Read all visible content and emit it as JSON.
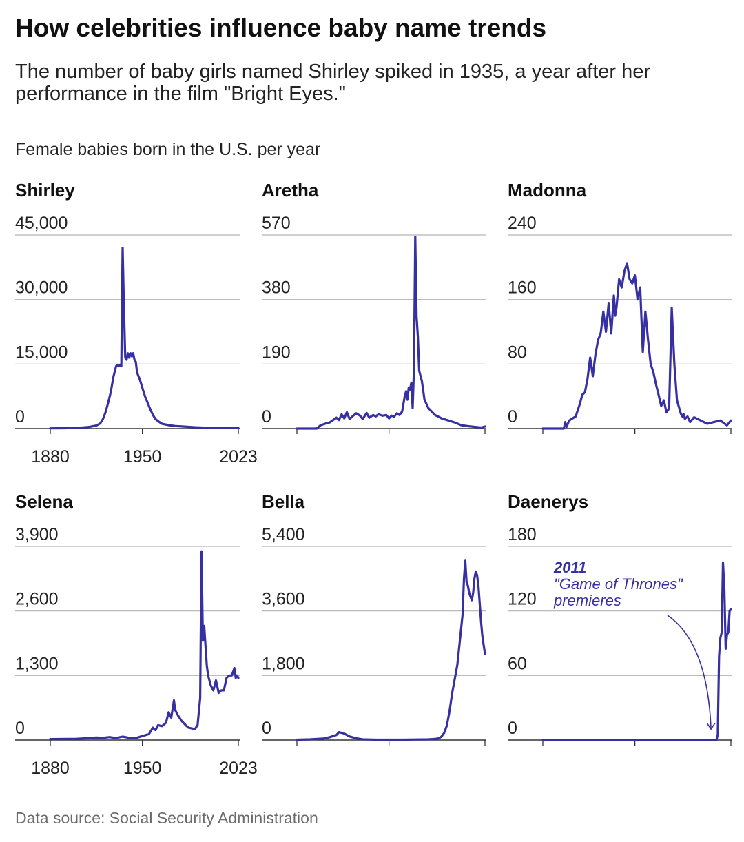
{
  "title": "How celebrities influence baby name trends",
  "subtitle": "The number of baby girls named Shirley spiked in 1935, a year after her performance in the film \"Bright Eyes.\"",
  "unit_label": "Female babies born in the U.S. per year",
  "source": "Data source: Social Security Administration",
  "colors": {
    "line": "#3730a3",
    "grid": "#b3b3b3",
    "axis": "#333333",
    "text": "#222222"
  },
  "chart_data": [
    {
      "type": "line",
      "title": "Shirley",
      "x_ticks": [
        1880,
        1950,
        2023
      ],
      "x_tick_labels": [
        "1880",
        "1950",
        "2023"
      ],
      "y_ticks": [
        0,
        15000,
        30000,
        45000
      ],
      "y_tick_labels": [
        "0",
        "15,000",
        "30,000",
        "45,000"
      ],
      "xlim": [
        1880,
        2023
      ],
      "ylim": [
        0,
        45000
      ],
      "series": [
        {
          "x": [
            1880,
            1890,
            1900,
            1905,
            1910,
            1915,
            1918,
            1920,
            1922,
            1924,
            1926,
            1928,
            1930,
            1931,
            1932,
            1933,
            1934,
            1935,
            1936,
            1937,
            1938,
            1939,
            1940,
            1941,
            1942,
            1943,
            1944,
            1945,
            1946,
            1948,
            1950,
            1952,
            1954,
            1956,
            1958,
            1960,
            1962,
            1965,
            1970,
            1975,
            1980,
            1990,
            2000,
            2010,
            2023
          ],
          "y": [
            50,
            80,
            150,
            250,
            400,
            700,
            1200,
            2200,
            3800,
            6000,
            8500,
            12000,
            14500,
            14800,
            14500,
            14800,
            14500,
            42000,
            28000,
            16500,
            16000,
            17500,
            16500,
            17500,
            16800,
            17500,
            16000,
            15500,
            13000,
            11500,
            9500,
            7500,
            6000,
            4500,
            3200,
            2200,
            1700,
            1100,
            800,
            600,
            500,
            300,
            200,
            150,
            100
          ]
        }
      ]
    },
    {
      "type": "line",
      "title": "Aretha",
      "x_ticks": [
        1880,
        1950,
        2023
      ],
      "y_ticks": [
        0,
        190,
        380,
        570
      ],
      "y_tick_labels": [
        "0",
        "190",
        "380",
        "570"
      ],
      "xlim": [
        1880,
        2023
      ],
      "ylim": [
        0,
        570
      ],
      "series": [
        {
          "x": [
            1880,
            1895,
            1898,
            1902,
            1905,
            1910,
            1912,
            1914,
            1916,
            1918,
            1920,
            1922,
            1925,
            1928,
            1930,
            1933,
            1935,
            1938,
            1940,
            1942,
            1945,
            1948,
            1950,
            1952,
            1954,
            1956,
            1958,
            1960,
            1962,
            1963,
            1964,
            1965,
            1966,
            1967,
            1968,
            1969,
            1970,
            1971,
            1972,
            1973,
            1975,
            1977,
            1980,
            1985,
            1990,
            1995,
            2000,
            2005,
            2010,
            2015,
            2020,
            2023
          ],
          "y": [
            0,
            0,
            10,
            15,
            18,
            32,
            25,
            42,
            30,
            48,
            28,
            35,
            45,
            38,
            28,
            46,
            32,
            40,
            36,
            42,
            38,
            40,
            30,
            38,
            35,
            45,
            40,
            50,
            95,
            110,
            85,
            120,
            115,
            135,
            60,
            175,
            565,
            330,
            270,
            170,
            140,
            85,
            60,
            40,
            30,
            24,
            18,
            10,
            7,
            5,
            3,
            6
          ]
        }
      ]
    },
    {
      "type": "line",
      "title": "Madonna",
      "x_ticks": [
        1880,
        1950,
        2023
      ],
      "y_ticks": [
        0,
        80,
        160,
        240
      ],
      "y_tick_labels": [
        "0",
        "80",
        "160",
        "240"
      ],
      "xlim": [
        1880,
        2023
      ],
      "ylim": [
        0,
        240
      ],
      "series": [
        {
          "x": [
            1880,
            1896,
            1897,
            1898,
            1900,
            1905,
            1908,
            1910,
            1912,
            1914,
            1916,
            1918,
            1920,
            1922,
            1924,
            1926,
            1928,
            1930,
            1932,
            1934,
            1935,
            1936,
            1938,
            1940,
            1942,
            1944,
            1946,
            1948,
            1950,
            1952,
            1954,
            1956,
            1958,
            1960,
            1962,
            1964,
            1966,
            1968,
            1970,
            1972,
            1974,
            1976,
            1978,
            1980,
            1982,
            1985,
            1986,
            1987,
            1988,
            1990,
            1992,
            1995,
            2000,
            2005,
            2010,
            2015,
            2020,
            2023
          ],
          "y": [
            0,
            0,
            8,
            2,
            10,
            15,
            30,
            42,
            45,
            62,
            88,
            65,
            92,
            110,
            118,
            145,
            120,
            155,
            118,
            165,
            140,
            150,
            185,
            175,
            195,
            205,
            185,
            180,
            190,
            160,
            175,
            95,
            145,
            110,
            80,
            70,
            55,
            42,
            28,
            35,
            20,
            25,
            150,
            80,
            35,
            18,
            15,
            18,
            12,
            15,
            8,
            14,
            10,
            6,
            8,
            10,
            4,
            10
          ]
        }
      ]
    },
    {
      "type": "line",
      "title": "Selena",
      "x_ticks": [
        1880,
        1950,
        2023
      ],
      "x_tick_labels": [
        "1880",
        "1950",
        "2023"
      ],
      "y_ticks": [
        0,
        1300,
        2600,
        3900
      ],
      "y_tick_labels": [
        "0",
        "1,300",
        "2,600",
        "3,900"
      ],
      "xlim": [
        1880,
        2023
      ],
      "ylim": [
        0,
        3900
      ],
      "series": [
        {
          "x": [
            1880,
            1900,
            1910,
            1915,
            1920,
            1925,
            1930,
            1935,
            1940,
            1945,
            1950,
            1955,
            1958,
            1960,
            1962,
            1965,
            1968,
            1970,
            1972,
            1974,
            1975,
            1977,
            1980,
            1983,
            1985,
            1990,
            1992,
            1994,
            1995,
            1996,
            1997,
            1998,
            1999,
            2000,
            2002,
            2004,
            2006,
            2008,
            2010,
            2012,
            2014,
            2016,
            2018,
            2020,
            2021,
            2022,
            2023
          ],
          "y": [
            20,
            25,
            40,
            50,
            45,
            60,
            40,
            70,
            45,
            40,
            80,
            120,
            250,
            200,
            300,
            280,
            350,
            560,
            450,
            800,
            600,
            500,
            380,
            300,
            250,
            220,
            300,
            850,
            3800,
            2000,
            2300,
            1900,
            1500,
            1300,
            1100,
            1000,
            1200,
            950,
            1000,
            1000,
            1250,
            1300,
            1300,
            1450,
            1250,
            1300,
            1250
          ]
        }
      ]
    },
    {
      "type": "line",
      "title": "Bella",
      "x_ticks": [
        1880,
        1950,
        2023
      ],
      "y_ticks": [
        0,
        1800,
        3600,
        5400
      ],
      "y_tick_labels": [
        "0",
        "1,800",
        "3,600",
        "5,400"
      ],
      "xlim": [
        1880,
        2023
      ],
      "ylim": [
        0,
        5400
      ],
      "series": [
        {
          "x": [
            1880,
            1890,
            1900,
            1905,
            1910,
            1912,
            1914,
            1916,
            1918,
            1920,
            1925,
            1930,
            1935,
            1940,
            1950,
            1960,
            1970,
            1980,
            1985,
            1988,
            1990,
            1992,
            1994,
            1996,
            1998,
            2000,
            2002,
            2004,
            2006,
            2007,
            2008,
            2009,
            2010,
            2011,
            2012,
            2013,
            2014,
            2015,
            2016,
            2017,
            2018,
            2019,
            2020,
            2021,
            2023
          ],
          "y": [
            10,
            20,
            40,
            80,
            140,
            220,
            200,
            180,
            140,
            100,
            50,
            20,
            15,
            10,
            10,
            10,
            15,
            20,
            30,
            50,
            100,
            200,
            400,
            800,
            1300,
            1700,
            2100,
            2800,
            3500,
            4500,
            5000,
            4400,
            4300,
            4100,
            4000,
            3900,
            4100,
            4500,
            4700,
            4600,
            4300,
            3800,
            3300,
            2900,
            2400
          ]
        }
      ]
    },
    {
      "type": "line",
      "title": "Daenerys",
      "x_ticks": [
        1880,
        1950,
        2023
      ],
      "y_ticks": [
        0,
        60,
        120,
        180
      ],
      "y_tick_labels": [
        "0",
        "60",
        "120",
        "180"
      ],
      "xlim": [
        1880,
        2023
      ],
      "ylim": [
        0,
        180
      ],
      "annotation": {
        "year_label": "2011",
        "text_line1": "\"Game of Thrones\"",
        "text_line2": "premieres",
        "x": 2011,
        "y": 5
      },
      "series": [
        {
          "x": [
            1880,
            2012,
            2013,
            2014,
            2015,
            2016,
            2017,
            2018,
            2019,
            2020,
            2021,
            2022,
            2023
          ],
          "y": [
            0,
            0,
            5,
            78,
            95,
            100,
            165,
            140,
            85,
            98,
            100,
            120,
            122
          ]
        }
      ]
    }
  ]
}
